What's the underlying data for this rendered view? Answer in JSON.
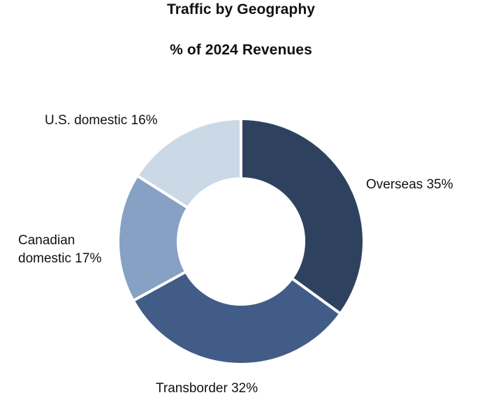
{
  "chart_data": {
    "type": "pie",
    "title": "Traffic by Geography",
    "subtitle": "% of 2024 Revenues",
    "donut": true,
    "slices": [
      {
        "label": "Overseas 35%",
        "name": "Overseas",
        "value": 35,
        "color": "#2e4260"
      },
      {
        "label": "Transborder 32%",
        "name": "Transborder",
        "value": 32,
        "color": "#415c86"
      },
      {
        "label": "Canadian domestic 17%",
        "label_lines": [
          "Canadian",
          "domestic 17%"
        ],
        "name": "Canadian domestic",
        "value": 17,
        "color": "#86a1c4"
      },
      {
        "label": "U.S. domestic 16%",
        "name": "U.S. domestic",
        "value": 16,
        "color": "#cbd8e6"
      }
    ]
  }
}
